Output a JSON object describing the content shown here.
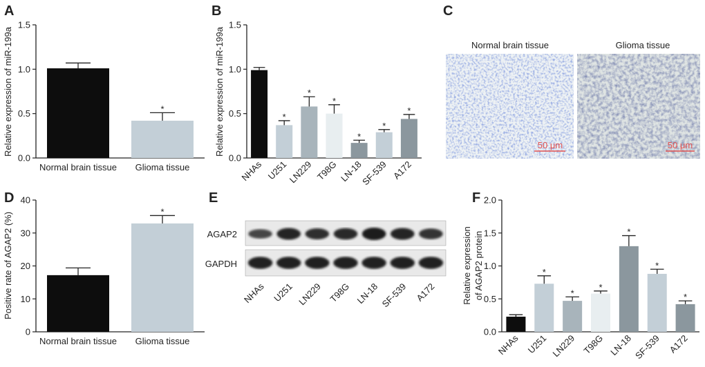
{
  "panels": {
    "a": {
      "letter": "A"
    },
    "b": {
      "letter": "B"
    },
    "c": {
      "letter": "C"
    },
    "d": {
      "letter": "D"
    },
    "e": {
      "letter": "E"
    },
    "f": {
      "letter": "F"
    }
  },
  "histology": {
    "normal_title": "Normal brain tissue",
    "glioma_title": "Glioma tissue",
    "scale_label": "50 μm"
  },
  "blot": {
    "row_labels": [
      "AGAP2",
      "GAPDH"
    ],
    "lanes": [
      "NHAs",
      "U251",
      "LN229",
      "T98G",
      "LN-18",
      "SF-539",
      "A172"
    ],
    "agap2_band_intensity": [
      0.55,
      0.9,
      0.8,
      0.85,
      1.0,
      0.9,
      0.75
    ],
    "gapdh_band_intensity": [
      0.95,
      0.95,
      0.95,
      0.95,
      0.95,
      0.95,
      0.95
    ]
  },
  "chart_data": [
    {
      "id": "A",
      "type": "bar",
      "categories": [
        "Normal brain tissue",
        "Glioma tissue"
      ],
      "values": [
        1.01,
        0.42
      ],
      "errors": [
        0.06,
        0.09
      ],
      "significant": [
        false,
        true
      ],
      "colors": [
        "#0d0d0d",
        "#c3cfd7"
      ],
      "ylabel": "Relative expression of miR-199a",
      "ylim": [
        0,
        1.5
      ],
      "yticks": [
        "0.0",
        "0.5",
        "1.0",
        "1.5"
      ]
    },
    {
      "id": "B",
      "type": "bar",
      "categories": [
        "NHAs",
        "U251",
        "LN229",
        "T98G",
        "LN-18",
        "SF-539",
        "A172"
      ],
      "values": [
        0.99,
        0.37,
        0.58,
        0.5,
        0.17,
        0.29,
        0.44
      ],
      "errors": [
        0.03,
        0.05,
        0.11,
        0.1,
        0.03,
        0.03,
        0.05
      ],
      "significant": [
        false,
        true,
        true,
        true,
        true,
        true,
        true
      ],
      "colors": [
        "#0d0d0d",
        "#c3cfd7",
        "#a8b4bb",
        "#e8eef0",
        "#8b979e",
        "#c3cfd7",
        "#8b979e"
      ],
      "ylabel": "Relative expression of miR-199a",
      "ylim": [
        0,
        1.5
      ],
      "yticks": [
        "0.0",
        "0.5",
        "1.0",
        "1.5"
      ]
    },
    {
      "id": "D",
      "type": "bar",
      "categories": [
        "Normal brain tissue",
        "Glioma tissue"
      ],
      "values": [
        17.2,
        32.9
      ],
      "errors": [
        2.2,
        2.4
      ],
      "significant": [
        false,
        true
      ],
      "colors": [
        "#0d0d0d",
        "#c3cfd7"
      ],
      "ylabel": "Positive rate of AGAP2 (%)",
      "ylim": [
        0,
        40
      ],
      "yticks": [
        "0",
        "10",
        "20",
        "30",
        "40"
      ]
    },
    {
      "id": "F",
      "type": "bar",
      "categories": [
        "NHAs",
        "U251",
        "LN229",
        "T98G",
        "LN-18",
        "SF-539",
        "A172"
      ],
      "values": [
        0.23,
        0.73,
        0.47,
        0.58,
        1.3,
        0.88,
        0.42
      ],
      "errors": [
        0.03,
        0.12,
        0.06,
        0.04,
        0.16,
        0.07,
        0.05
      ],
      "significant": [
        false,
        true,
        true,
        true,
        true,
        true,
        true
      ],
      "colors": [
        "#0d0d0d",
        "#c3cfd7",
        "#a8b4bb",
        "#e8eef0",
        "#8b979e",
        "#c3cfd7",
        "#8b979e"
      ],
      "ylabel": "Relative expression",
      "ylabel2": "of AGAP2 protein",
      "ylim": [
        0,
        2.0
      ],
      "yticks": [
        "0.0",
        "0.5",
        "1.0",
        "1.5",
        "2.0"
      ]
    }
  ]
}
